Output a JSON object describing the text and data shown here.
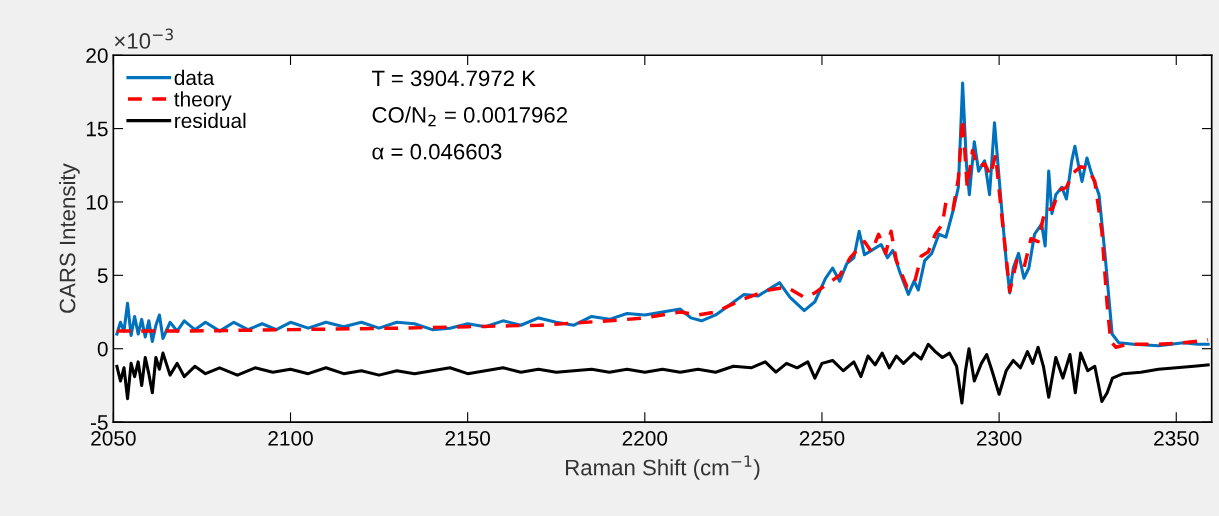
{
  "chart_data": {
    "type": "line",
    "xlabel": "Raman Shift (cm$^{−1}$)",
    "ylabel": "CARS Intensity",
    "annotations": [
      "×10$^{−3}$",
      "T = 3904.7972 K",
      "CO/N$_{2}$ = 0.0017962",
      "α = 0.046603"
    ],
    "xlim": [
      2050,
      2360
    ],
    "ylim": [
      -5,
      20
    ],
    "xticks": [
      2050,
      2100,
      2150,
      2200,
      2250,
      2300,
      2350
    ],
    "yticks": [
      -5,
      0,
      5,
      10,
      15,
      20
    ],
    "grid": false,
    "legend": "top left",
    "marker": "none",
    "series": [
      {
        "name": "data",
        "color": "#0072bd",
        "line_style": "solid",
        "x": [
          2051,
          2052,
          2053,
          2054,
          2055,
          2056,
          2057,
          2058,
          2059,
          2060,
          2061,
          2062,
          2063,
          2064,
          2066,
          2068,
          2070,
          2073,
          2076,
          2080,
          2084,
          2088,
          2092,
          2096,
          2100,
          2105,
          2110,
          2115,
          2120,
          2125,
          2130,
          2135,
          2140,
          2145,
          2150,
          2155,
          2160,
          2165,
          2170,
          2175,
          2180,
          2185,
          2190,
          2195,
          2200,
          2205,
          2210,
          2213,
          2216,
          2220,
          2224,
          2228,
          2232,
          2236,
          2238,
          2241,
          2245,
          2248,
          2251,
          2253,
          2255,
          2257,
          2259,
          2260.5,
          2262,
          2264,
          2266.7,
          2268.5,
          2270,
          2272,
          2274.4,
          2276,
          2277.2,
          2279,
          2281,
          2283,
          2285,
          2287,
          2288.5,
          2289.7,
          2290.8,
          2291.6,
          2293,
          2294.2,
          2295.9,
          2297.3,
          2298.7,
          2300.7,
          2302,
          2303,
          2304,
          2305.5,
          2307,
          2308.4,
          2310,
          2312,
          2313,
          2314,
          2314.9,
          2316,
          2317.7,
          2319,
          2320.5,
          2321.4,
          2322.5,
          2323.4,
          2324.8,
          2326,
          2328.2,
          2329.9,
          2331.9,
          2333.8,
          2338,
          2345,
          2352,
          2356,
          2359
        ],
        "values": [
          1.0,
          1.8,
          1.2,
          3.1,
          0.9,
          2.2,
          1.0,
          2.0,
          0.8,
          1.9,
          0.5,
          1.6,
          2.3,
          0.7,
          1.8,
          1.2,
          1.9,
          1.3,
          1.8,
          1.2,
          1.8,
          1.3,
          1.7,
          1.3,
          1.8,
          1.4,
          1.8,
          1.5,
          1.8,
          1.4,
          1.8,
          1.7,
          1.3,
          1.4,
          1.7,
          1.5,
          1.9,
          1.6,
          2.1,
          1.8,
          1.6,
          2.2,
          2.0,
          2.4,
          2.3,
          2.5,
          2.7,
          2.1,
          1.9,
          2.3,
          3.0,
          3.7,
          3.6,
          4.2,
          4.5,
          3.5,
          2.6,
          3.2,
          4.8,
          5.5,
          4.6,
          5.8,
          6.2,
          8.0,
          6.4,
          6.7,
          7.1,
          6.2,
          6.7,
          5.2,
          3.7,
          4.6,
          4.0,
          6.0,
          6.5,
          7.8,
          7.6,
          9.4,
          11,
          18.1,
          12.5,
          10.5,
          14.1,
          12.1,
          12.8,
          10.5,
          15.4,
          9.6,
          6.0,
          3.8,
          5.5,
          6.5,
          4.8,
          5.5,
          7.8,
          8.5,
          7.0,
          12.1,
          9.2,
          10.5,
          11,
          10.2,
          12.8,
          13.8,
          12.4,
          11.4,
          13.0,
          12.0,
          10.5,
          6.4,
          1.0,
          0.4,
          0.3,
          0.2,
          0.4,
          0.3,
          0.3
        ]
      },
      {
        "name": "theory",
        "color": "#ff0000",
        "line_style": "dashed",
        "x": [
          2051,
          2070,
          2100,
          2130,
          2150,
          2170,
          2190,
          2200,
          2210,
          2215,
          2220,
          2228,
          2235,
          2240,
          2245,
          2248,
          2252,
          2255,
          2258,
          2262,
          2264,
          2266,
          2268,
          2269.5,
          2271,
          2274,
          2276,
          2278,
          2280,
          2282,
          2284,
          2285,
          2287,
          2288.5,
          2289.7,
          2291,
          2292.5,
          2294,
          2296,
          2297.5,
          2299,
          2301,
          2303,
          2305,
          2307,
          2309,
          2311,
          2313,
          2315,
          2317,
          2319,
          2321,
          2323,
          2325,
          2327,
          2329,
          2330.5,
          2331.5,
          2333,
          2336,
          2345,
          2352,
          2359
        ],
        "values": [
          1.2,
          1.2,
          1.3,
          1.4,
          1.5,
          1.6,
          1.9,
          2.1,
          2.5,
          2.3,
          2.5,
          3.4,
          4.0,
          4.2,
          3.5,
          3.8,
          4.5,
          5.0,
          6.2,
          7.3,
          6.6,
          7.8,
          6.5,
          8.0,
          6.0,
          4.2,
          4.4,
          6.3,
          6.6,
          7.8,
          8.5,
          10.0,
          9.5,
          11.6,
          15.7,
          11,
          13.5,
          12.4,
          12.6,
          11.8,
          13.2,
          8.5,
          3.9,
          6.0,
          5.5,
          7.5,
          7.3,
          9.5,
          9.5,
          10.8,
          11.0,
          12.0,
          12.4,
          12.3,
          11.4,
          8.0,
          3.0,
          0.5,
          0.1,
          0.3,
          0.3,
          0.4,
          0.6
        ]
      },
      {
        "name": "residual",
        "color": "#000000",
        "line_style": "solid",
        "x": [
          2051,
          2052,
          2053,
          2054,
          2055,
          2056,
          2057,
          2058,
          2059,
          2060,
          2061,
          2062,
          2063,
          2064,
          2066,
          2068,
          2070,
          2073,
          2076,
          2080,
          2085,
          2090,
          2095,
          2100,
          2105,
          2110,
          2115,
          2120,
          2125,
          2130,
          2135,
          2140,
          2145,
          2150,
          2155,
          2160,
          2165,
          2170,
          2175,
          2180,
          2185,
          2190,
          2195,
          2200,
          2205,
          2210,
          2215,
          2220,
          2225,
          2230,
          2234,
          2237,
          2240,
          2243,
          2246,
          2248,
          2250,
          2253,
          2256,
          2259,
          2261,
          2263,
          2265,
          2267,
          2269,
          2271,
          2273,
          2276,
          2278,
          2280,
          2282,
          2284,
          2286,
          2288,
          2289.5,
          2290.5,
          2291.5,
          2293,
          2295,
          2296.5,
          2298,
          2300,
          2302,
          2304,
          2306,
          2308,
          2309.5,
          2311,
          2312.5,
          2314,
          2316,
          2318,
          2320,
          2321.5,
          2323,
          2325,
          2327,
          2329,
          2330.5,
          2332,
          2335,
          2340,
          2345,
          2350,
          2355,
          2359
        ],
        "values": [
          -1.2,
          -2.2,
          -1.3,
          -3.4,
          -1.0,
          -1.9,
          -0.9,
          -2.5,
          -0.6,
          -1.7,
          -3.0,
          -0.6,
          -1.4,
          -0.3,
          -1.8,
          -1.0,
          -1.9,
          -1.2,
          -1.7,
          -1.3,
          -1.8,
          -1.3,
          -1.6,
          -1.4,
          -1.7,
          -1.3,
          -1.7,
          -1.5,
          -1.8,
          -1.5,
          -1.7,
          -1.5,
          -1.3,
          -1.7,
          -1.5,
          -1.3,
          -1.6,
          -1.4,
          -1.6,
          -1.5,
          -1.4,
          -1.6,
          -1.4,
          -1.6,
          -1.4,
          -1.6,
          -1.4,
          -1.6,
          -1.2,
          -1.3,
          -0.9,
          -1.6,
          -1.0,
          -1.3,
          -0.9,
          -2.0,
          -1.0,
          -0.8,
          -1.5,
          -0.9,
          -1.9,
          -0.5,
          -1.1,
          -0.3,
          -1.3,
          -0.5,
          -1.0,
          -0.3,
          -0.7,
          0.3,
          -0.2,
          -0.6,
          -0.3,
          -1.2,
          -3.7,
          -1.5,
          0.0,
          -2.2,
          -1.0,
          -0.4,
          -1.5,
          -3.1,
          -1.5,
          -0.8,
          -1.3,
          -0.2,
          -1.0,
          0.1,
          -1.2,
          -3.3,
          -0.6,
          -2.0,
          -0.4,
          -3.0,
          -0.3,
          -1.5,
          -1.2,
          -3.6,
          -3.0,
          -2.0,
          -1.7,
          -1.6,
          -1.4,
          -1.3,
          -1.2,
          -1.1
        ]
      }
    ]
  }
}
